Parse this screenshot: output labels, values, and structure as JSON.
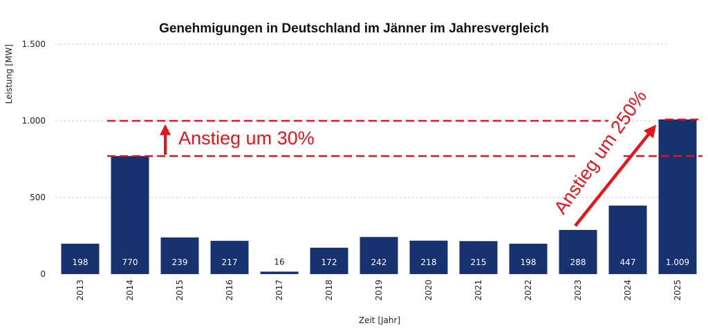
{
  "chart_data": {
    "type": "bar",
    "title": "Genehmigungen in Deutschland im Jänner im Jahresvergleich",
    "xlabel": "Zeit [Jahr]",
    "ylabel": "Leistung [MW]",
    "ylim": [
      0,
      1500
    ],
    "yticks": [
      {
        "value": 0,
        "label": "0"
      },
      {
        "value": 500,
        "label": "500"
      },
      {
        "value": 1000,
        "label": "1.000"
      },
      {
        "value": 1500,
        "label": "1.500"
      }
    ],
    "grid": true,
    "categories": [
      "2013",
      "2014",
      "2015",
      "2016",
      "2017",
      "2018",
      "2019",
      "2020",
      "2021",
      "2022",
      "2023",
      "2024",
      "2025"
    ],
    "values": [
      198,
      770,
      239,
      217,
      16,
      172,
      242,
      218,
      215,
      198,
      288,
      447,
      1009
    ],
    "data_labels": [
      "198",
      "770",
      "239",
      "217",
      "16",
      "172",
      "242",
      "218",
      "215",
      "198",
      "288",
      "447",
      "1.009"
    ],
    "bar_color": "#17306e",
    "annotation_color": "#e8141b",
    "annotations": [
      {
        "text": "Anstieg um 30%",
        "from_value": 770,
        "to_value": 1000
      },
      {
        "text": "Anstieg um 250%",
        "from_value": 288,
        "to_value": 1009
      }
    ]
  }
}
